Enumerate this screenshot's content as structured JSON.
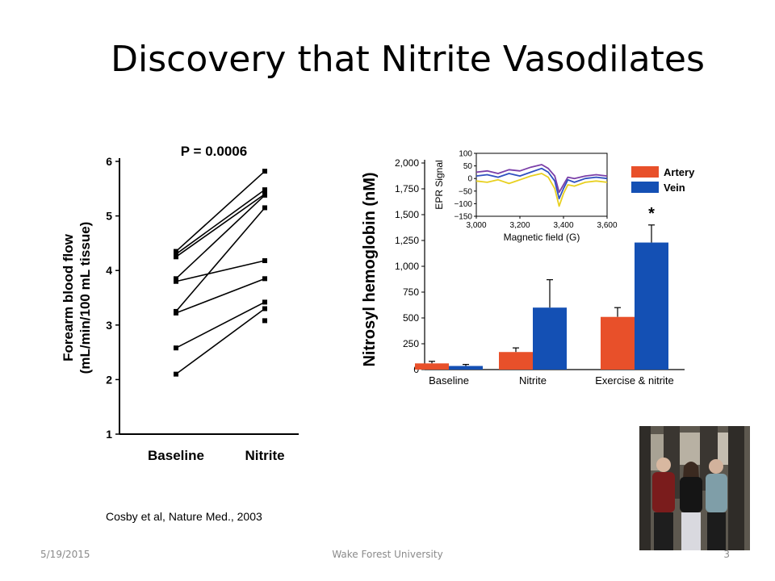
{
  "slide": {
    "title": "Discovery that Nitrite Vasodilates",
    "citation": "Cosby et al, Nature Med., 2003",
    "footer": {
      "date": "5/19/2015",
      "organization": "Wake Forest University",
      "page": "3"
    }
  },
  "chart_data": [
    {
      "type": "line",
      "title": "P = 0.0006",
      "ylabel": "Forearm blood flow (mL/min/100 mL tissue)",
      "ylabel_lines": [
        "Forearm blood flow",
        "(mL/min/100 mL tissue)"
      ],
      "categories": [
        "Baseline",
        "Nitrite"
      ],
      "ylim": [
        1,
        6
      ],
      "yticks": [
        1,
        2,
        3,
        4,
        5,
        6
      ],
      "grid": false,
      "series": [
        {
          "values": [
            4.35,
            5.82
          ]
        },
        {
          "values": [
            4.3,
            5.48
          ]
        },
        {
          "values": [
            4.25,
            5.4
          ]
        },
        {
          "values": [
            3.85,
            5.38
          ]
        },
        {
          "values": [
            3.8,
            4.18
          ]
        },
        {
          "values": [
            3.25,
            5.15
          ]
        },
        {
          "values": [
            3.22,
            3.85
          ]
        },
        {
          "values": [
            2.58,
            3.42
          ]
        },
        {
          "values": [
            2.1,
            3.3
          ]
        }
      ],
      "extra_points": [
        {
          "x": "Nitrite",
          "y": 3.08
        }
      ]
    },
    {
      "type": "bar",
      "ylabel": "Nitrosyl hemoglobin (nM)",
      "categories": [
        "Baseline",
        "Nitrite",
        "Exercise & nitrite"
      ],
      "ylim": [
        0,
        2000
      ],
      "yticks": [
        0,
        250,
        500,
        750,
        1000,
        1250,
        1500,
        1750,
        2000
      ],
      "ytick_labels": [
        "0",
        "250",
        "500",
        "750",
        "1,000",
        "1,250",
        "1,500",
        "1,750",
        "2,000"
      ],
      "legend_position": "top-right",
      "series": [
        {
          "name": "Artery",
          "color": "#e8502a",
          "values": [
            60,
            170,
            510
          ],
          "errors": [
            20,
            40,
            90
          ]
        },
        {
          "name": "Vein",
          "color": "#1450b4",
          "values": [
            35,
            600,
            1230
          ],
          "errors": [
            15,
            270,
            170
          ]
        }
      ],
      "annotations": [
        {
          "text": "*",
          "series": "Vein",
          "category": "Exercise & nitrite"
        }
      ],
      "inset": {
        "type": "line",
        "ylabel": "EPR Signal",
        "xlabel": "Magnetic field (G)",
        "xlim": [
          3000,
          3600
        ],
        "xticks": [
          3000,
          3200,
          3400,
          3600
        ],
        "xtick_labels": [
          "3,000",
          "3,200",
          "3,400",
          "3,600"
        ],
        "ylim": [
          -150,
          100
        ],
        "yticks": [
          -150,
          -100,
          -50,
          0,
          50,
          100
        ],
        "ytick_labels": [
          "−150",
          "−100",
          "−50",
          "0",
          "50",
          "100"
        ],
        "series": [
          {
            "color": "#e8d020",
            "x": [
              3000,
              3050,
              3100,
              3150,
              3200,
              3250,
              3300,
              3330,
              3360,
              3380,
              3400,
              3420,
              3450,
              3500,
              3550,
              3600
            ],
            "values": [
              -10,
              -15,
              -5,
              -20,
              -5,
              10,
              20,
              5,
              -40,
              -110,
              -60,
              -25,
              -30,
              -15,
              -10,
              -15
            ]
          },
          {
            "color": "#7b3fa8",
            "x": [
              3000,
              3050,
              3100,
              3150,
              3200,
              3250,
              3300,
              3330,
              3360,
              3380,
              3400,
              3420,
              3450,
              3500,
              3550,
              3600
            ],
            "values": [
              25,
              30,
              20,
              35,
              30,
              45,
              55,
              40,
              10,
              -55,
              -25,
              5,
              0,
              10,
              15,
              10
            ]
          },
          {
            "color": "#3050c0",
            "x": [
              3000,
              3050,
              3100,
              3150,
              3200,
              3250,
              3300,
              3330,
              3360,
              3380,
              3400,
              3420,
              3450,
              3500,
              3550,
              3600
            ],
            "values": [
              10,
              15,
              5,
              20,
              10,
              25,
              40,
              25,
              -10,
              -80,
              -40,
              -5,
              -15,
              0,
              5,
              0
            ]
          }
        ]
      }
    }
  ]
}
